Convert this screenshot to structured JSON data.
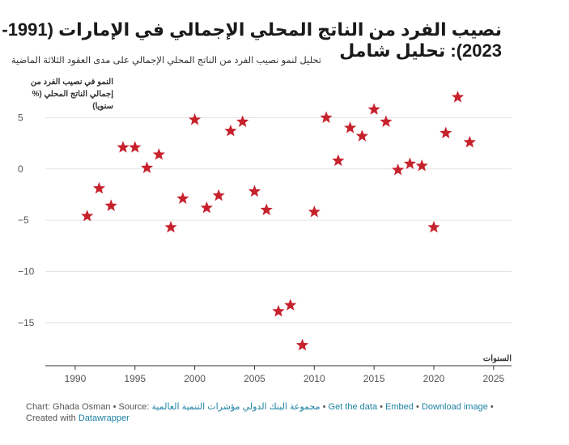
{
  "title": "نصيب الفرد من الناتج المحلي الإجمالي في الإمارات (1991-2023): تحليل شامل",
  "subtitle": "تحليل لنمو نصيب الفرد من الناتج المحلي الإجمالي على مدى العقود الثلاثة الماضية",
  "footer": {
    "chart_prefix": "Chart: Ghada Osman",
    "source_label": "Source:",
    "source_text": "مجموعة البنك الدولي مؤشرات التنمية العالمية",
    "get_data": "Get the data",
    "embed": "Embed",
    "download_image": "Download image",
    "created_with": "Created with",
    "tool": "Datawrapper"
  },
  "chart_data": {
    "type": "scatter",
    "marker": "star",
    "marker_color": "#c7212c",
    "grid": true,
    "xlabel": "السنوات",
    "ylabel": "النمو في نصيب الفرد من إجمالي الناتج المحلي (% سنويا)",
    "ylabel_lines": [
      "النمو في نصيب الفرد من",
      "إجمالي الناتج المحلي (%",
      "سنويا)"
    ],
    "xlim": [
      1987.5,
      2026.5
    ],
    "ylim": [
      -19.2,
      7.8
    ],
    "x_ticks": [
      1990,
      1995,
      2000,
      2005,
      2010,
      2015,
      2020,
      2025
    ],
    "y_ticks": [
      5,
      0,
      -5,
      -10,
      -15
    ],
    "y_tick_labels": [
      "5",
      "0",
      "−5",
      "−10",
      "−15"
    ],
    "points": [
      {
        "x": 1991,
        "y": -4.6
      },
      {
        "x": 1992,
        "y": -1.9
      },
      {
        "x": 1993,
        "y": -3.6
      },
      {
        "x": 1994,
        "y": 2.1
      },
      {
        "x": 1995,
        "y": 2.1
      },
      {
        "x": 1996,
        "y": 0.1
      },
      {
        "x": 1997,
        "y": 1.4
      },
      {
        "x": 1998,
        "y": -5.7
      },
      {
        "x": 1999,
        "y": -2.9
      },
      {
        "x": 2000,
        "y": 4.8
      },
      {
        "x": 2001,
        "y": -3.8
      },
      {
        "x": 2002,
        "y": -2.6
      },
      {
        "x": 2003,
        "y": 3.7
      },
      {
        "x": 2004,
        "y": 4.6
      },
      {
        "x": 2005,
        "y": -2.2
      },
      {
        "x": 2006,
        "y": -4.0
      },
      {
        "x": 2007,
        "y": -13.9
      },
      {
        "x": 2008,
        "y": -13.3
      },
      {
        "x": 2009,
        "y": -17.2
      },
      {
        "x": 2010,
        "y": -4.2
      },
      {
        "x": 2011,
        "y": 5.0
      },
      {
        "x": 2012,
        "y": 0.8
      },
      {
        "x": 2013,
        "y": 4.0
      },
      {
        "x": 2014,
        "y": 3.2
      },
      {
        "x": 2015,
        "y": 5.8
      },
      {
        "x": 2016,
        "y": 4.6
      },
      {
        "x": 2017,
        "y": -0.1
      },
      {
        "x": 2018,
        "y": 0.5
      },
      {
        "x": 2019,
        "y": 0.3
      },
      {
        "x": 2020,
        "y": -5.7
      },
      {
        "x": 2021,
        "y": 3.5
      },
      {
        "x": 2022,
        "y": 7.0
      },
      {
        "x": 2023,
        "y": 2.6
      }
    ]
  }
}
